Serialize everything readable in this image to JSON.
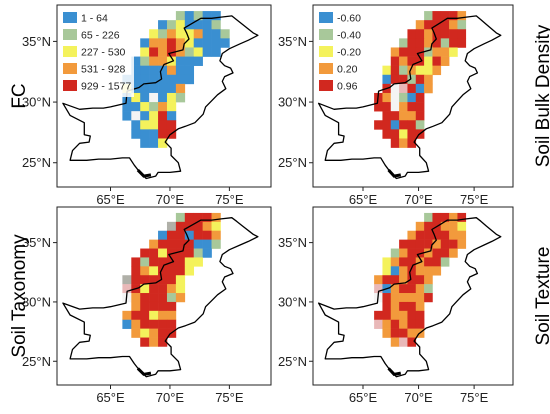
{
  "panels": [
    {
      "id": "fc",
      "title": "FC",
      "title_side": "left",
      "legend": [
        {
          "label": "1 - 64",
          "color": "#3a8fd1"
        },
        {
          "label": "65 - 226",
          "color": "#a8c89a"
        },
        {
          "label": "227 - 530",
          "color": "#f4f25c"
        },
        {
          "label": "531 - 928",
          "color": "#f29a3c"
        },
        {
          "label": "929 - 1577",
          "color": "#d1281f"
        }
      ]
    },
    {
      "id": "bulk-density",
      "title": "Soil Bulk Density",
      "title_side": "right",
      "legend": [
        {
          "label": "-0.60",
          "color": "#3a8fd1"
        },
        {
          "label": "-0.40",
          "color": "#a8c89a"
        },
        {
          "label": "-0.20",
          "color": "#f4f25c"
        },
        {
          "label": "0.20",
          "color": "#f29a3c"
        },
        {
          "label": "0.96",
          "color": "#d1281f"
        }
      ]
    },
    {
      "id": "taxonomy",
      "title": "Soil Taxonomy",
      "title_side": "left",
      "legend": []
    },
    {
      "id": "texture",
      "title": "Soil Texture",
      "title_side": "right",
      "legend": []
    }
  ],
  "axes": {
    "lon_ticks": [
      "65°E",
      "70°E",
      "75°E"
    ],
    "lat_ticks": [
      "35°N",
      "30°N",
      "25°N"
    ]
  },
  "colors": {
    "blue": "#3a8fd1",
    "green": "#a8c89a",
    "yellow": "#f4f25c",
    "orange": "#f29a3c",
    "red": "#d1281f",
    "pink": "#e9b8b8",
    "grey": "#b0b0a8"
  }
}
